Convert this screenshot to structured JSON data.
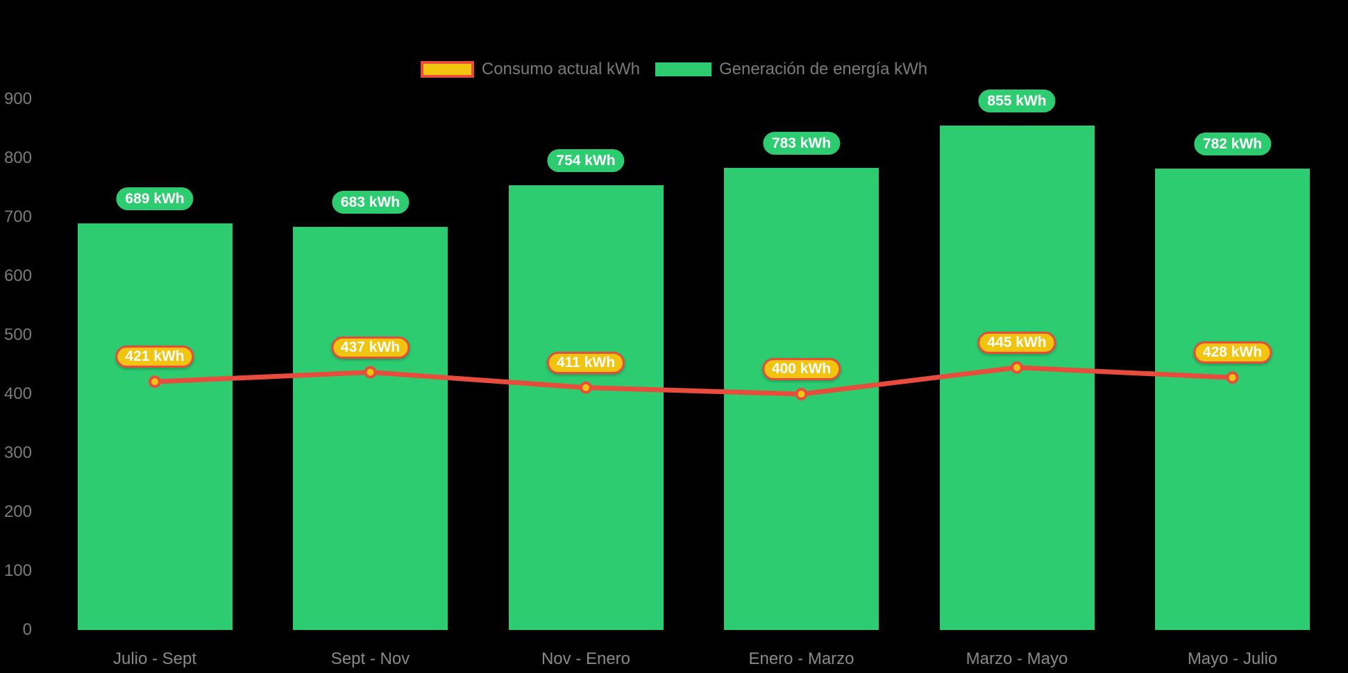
{
  "colors": {
    "background": "#000000",
    "bar_green": "#2ecc71",
    "line_red": "#e74c3c",
    "marker_gold": "#f1c40f",
    "axis_text": "#7c7c7c",
    "legend_text": "#7b7b7b",
    "badge_text": "#ffffff"
  },
  "legend": [
    {
      "label": "Consumo actual kWh",
      "swatch_fill": "#f1c40f",
      "swatch_border": "#e74c3c"
    },
    {
      "label": "Generación de energía kWh",
      "swatch_fill": "#2ecc71",
      "swatch_border": "#2ecc71"
    }
  ],
  "chart_data": {
    "type": "bar",
    "title": "",
    "categories": [
      "Julio - Sept",
      "Sept - Nov",
      "Nov - Enero",
      "Enero - Marzo",
      "Marzo - Mayo",
      "Mayo - Julio"
    ],
    "series": [
      {
        "name": "Consumo actual kWh",
        "type": "line",
        "color": "#e74c3c",
        "marker_fill": "#f1c40f",
        "values": [
          421,
          437,
          411,
          400,
          445,
          428
        ],
        "labels": [
          "421 kWh",
          "437 kWh",
          "411 kWh",
          "400 kWh",
          "445 kWh",
          "428 kWh"
        ]
      },
      {
        "name": "Generación de energía kWh",
        "type": "bar",
        "color": "#2ecc71",
        "values": [
          689,
          683,
          754,
          783,
          855,
          782
        ],
        "labels": [
          "689 kWh",
          "683 kWh",
          "754 kWh",
          "783 kWh",
          "855 kWh",
          "782 kWh"
        ]
      }
    ],
    "xlabel": "",
    "ylabel": "",
    "ylim": [
      0,
      900
    ],
    "yticks": [
      0,
      100,
      200,
      300,
      400,
      500,
      600,
      700,
      800,
      900
    ],
    "grid": false,
    "legend_position": "top"
  }
}
